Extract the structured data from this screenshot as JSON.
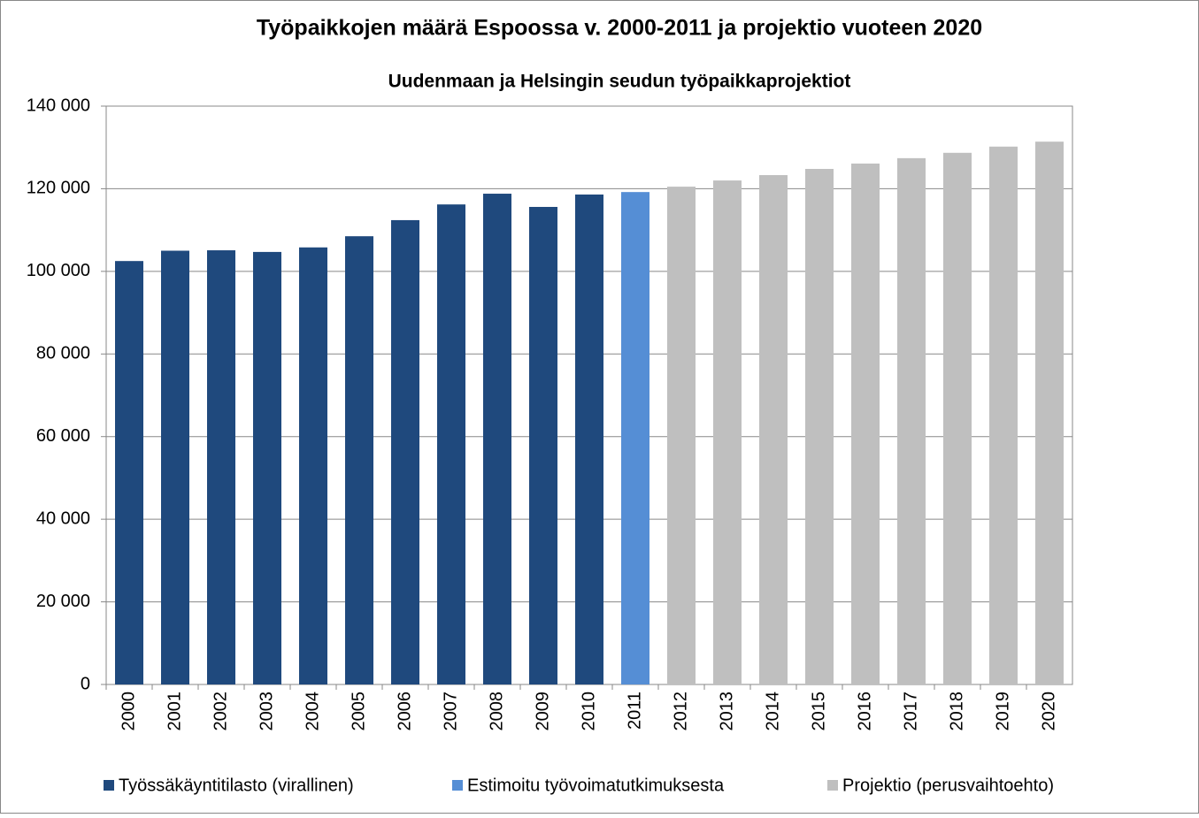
{
  "chart_data": {
    "type": "bar",
    "title": "Työpaikkojen määrä Espoossa v. 2000-2011 ja projektio vuoteen 2020",
    "subtitle": "Uudenmaan ja Helsingin seudun työpaikkaprojektiot",
    "categories": [
      "2000",
      "2001",
      "2002",
      "2003",
      "2004",
      "2005",
      "2006",
      "2007",
      "2008",
      "2009",
      "2010",
      "2011",
      "2012",
      "2013",
      "2014",
      "2015",
      "2016",
      "2017",
      "2018",
      "2019",
      "2020"
    ],
    "series": [
      {
        "name": "Työssäkäyntitilasto (virallinen)",
        "color": "#1f497d",
        "values": [
          102500,
          105000,
          105100,
          104700,
          105800,
          108500,
          112400,
          116200,
          118800,
          115600,
          118600,
          null,
          null,
          null,
          null,
          null,
          null,
          null,
          null,
          null,
          null
        ]
      },
      {
        "name": "Estimoitu työvoimatutkimuksesta",
        "color": "#558ed5",
        "values": [
          null,
          null,
          null,
          null,
          null,
          null,
          null,
          null,
          null,
          null,
          null,
          119200,
          null,
          null,
          null,
          null,
          null,
          null,
          null,
          null,
          null
        ]
      },
      {
        "name": "Projektio (perusvaihtoehto)",
        "color": "#bfbfbf",
        "values": [
          null,
          null,
          null,
          null,
          null,
          null,
          null,
          null,
          null,
          null,
          null,
          null,
          120500,
          122000,
          123300,
          124800,
          126100,
          127400,
          128700,
          130200,
          131400
        ]
      }
    ],
    "ylim": [
      0,
      140000
    ],
    "yticks": [
      0,
      {
        "value": 20000,
        "label": "20 000"
      },
      {
        "value": 40000,
        "label": "40 000"
      },
      {
        "value": 60000,
        "label": "60 000"
      },
      {
        "value": 80000,
        "label": "80 000"
      },
      {
        "value": 100000,
        "label": "100 000"
      },
      {
        "value": 120000,
        "label": "120 000"
      },
      {
        "value": 140000,
        "label": "140 000"
      }
    ],
    "grid": true,
    "legend": "bottom"
  }
}
